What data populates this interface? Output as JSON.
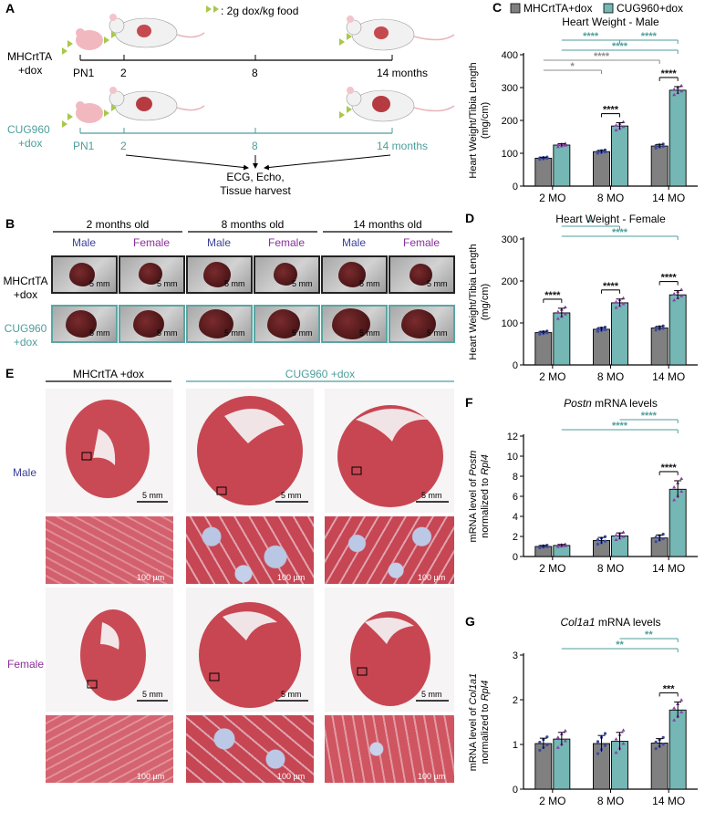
{
  "panels": {
    "A": {
      "letter": "A",
      "food_label": ": 2g dox/kg food",
      "row1_name_line1": "MHCrtTA",
      "row1_name_line2": "+dox",
      "row2_name_line1": "CUG960",
      "row2_name_line2": "+dox",
      "timepoints": [
        "PN1",
        "2",
        "8",
        "14 months"
      ],
      "outcome_line1": "ECG, Echo,",
      "outcome_line2": "Tissue harvest"
    },
    "B": {
      "letter": "B",
      "ages": [
        "2 months old",
        "8 months old",
        "14 months old"
      ],
      "sexes": [
        "Male",
        "Female"
      ],
      "row1_line1": "MHCrtTA",
      "row1_line2": "+dox",
      "row2_line1": "CUG960",
      "row2_line2": "+dox",
      "scale": "5 mm"
    },
    "E": {
      "letter": "E",
      "group1": "MHCrtTA +dox",
      "group2": "CUG960 +dox",
      "male": "Male",
      "female": "Female",
      "scale_large": "5 mm",
      "scale_small": "100 µm"
    }
  },
  "legend": {
    "series": [
      {
        "name": "MHCrtTA+dox",
        "color": "#7a7a7a"
      },
      {
        "name": "CUG960+dox",
        "color": "#6fb3b1"
      }
    ]
  },
  "colors": {
    "ctrl_bar": "#808080",
    "cug_bar": "#74b7b4",
    "teal_sig": "#4e9e9b",
    "gray_sig": "#8c8c8c",
    "male_text": "#3a3f9a",
    "female_text": "#8a2f9a",
    "black_sig": "#111111"
  },
  "chart_data": [
    {
      "id": "C",
      "letter": "C",
      "type": "bar",
      "title": "Heart Weight - Male",
      "ylabel_line1": "Heart Weight/Tibia Length",
      "ylabel_line2": "(mg/cm)",
      "categories": [
        "2 MO",
        "8 MO",
        "14 MO"
      ],
      "ylim": [
        0,
        400
      ],
      "yticks": [
        "0",
        "100",
        "200",
        "300",
        "400"
      ],
      "series": [
        {
          "name": "MHCrtTA+dox",
          "values": [
            85,
            105,
            122
          ],
          "errors": [
            3,
            4,
            5
          ]
        },
        {
          "name": "CUG960+dox",
          "values": [
            125,
            183,
            292
          ],
          "errors": [
            4,
            10,
            11
          ]
        }
      ],
      "significance": [
        {
          "from": [
            0,
            1
          ],
          "to": [
            1,
            1
          ],
          "level": 0,
          "label": "****",
          "color": "teal"
        },
        {
          "from": [
            1,
            1
          ],
          "to": [
            2,
            1
          ],
          "level": 0,
          "label": "****",
          "color": "teal"
        },
        {
          "from": [
            0,
            1
          ],
          "to": [
            2,
            1
          ],
          "level": 1,
          "label": "****",
          "color": "teal"
        },
        {
          "from": [
            0,
            0
          ],
          "to": [
            2,
            0
          ],
          "level": 2,
          "label": "****",
          "color": "gray"
        },
        {
          "from": [
            0,
            0
          ],
          "to": [
            1,
            0
          ],
          "level": 3,
          "label": "*",
          "color": "gray"
        },
        {
          "from": [
            1,
            0
          ],
          "to": [
            1,
            1
          ],
          "level": 4,
          "label": "****",
          "color": "black"
        },
        {
          "from": [
            2,
            0
          ],
          "to": [
            2,
            1
          ],
          "level": 4,
          "label": "****",
          "color": "black"
        }
      ]
    },
    {
      "id": "D",
      "letter": "D",
      "type": "bar",
      "title": "Heart Weight - Female",
      "ylabel_line1": "Heart Weight/Tibia Length",
      "ylabel_line2": "(mg/cm)",
      "categories": [
        "2 MO",
        "8 MO",
        "14 MO"
      ],
      "ylim": [
        0,
        300
      ],
      "yticks": [
        "0",
        "100",
        "200",
        "300"
      ],
      "series": [
        {
          "name": "MHCrtTA+dox",
          "values": [
            77,
            85,
            88
          ],
          "errors": [
            3,
            4,
            4
          ]
        },
        {
          "name": "CUG960+dox",
          "values": [
            124,
            148,
            167
          ],
          "errors": [
            11,
            9,
            10
          ]
        }
      ],
      "significance": [
        {
          "from": [
            0,
            1
          ],
          "to": [
            1,
            1
          ],
          "level": 0,
          "label": "*",
          "color": "teal"
        },
        {
          "from": [
            0,
            1
          ],
          "to": [
            2,
            1
          ],
          "level": 1,
          "label": "****",
          "color": "teal"
        },
        {
          "from": [
            0,
            0
          ],
          "to": [
            0,
            1
          ],
          "level": 4,
          "label": "****",
          "color": "black"
        },
        {
          "from": [
            1,
            0
          ],
          "to": [
            1,
            1
          ],
          "level": 4,
          "label": "****",
          "color": "black"
        },
        {
          "from": [
            2,
            0
          ],
          "to": [
            2,
            1
          ],
          "level": 4,
          "label": "****",
          "color": "black"
        }
      ]
    },
    {
      "id": "F",
      "letter": "F",
      "type": "bar",
      "title_gene": "Postn",
      "title_rest": " mRNA levels",
      "ylabel_line1_a": "mRNA level of ",
      "ylabel_line1_gene": "Postn",
      "ylabel_line2_a": "normalized to ",
      "ylabel_line2_gene": "Rpl4",
      "categories": [
        "2 MO",
        "8 MO",
        "14 MO"
      ],
      "ylim": [
        0,
        12
      ],
      "yticks": [
        "0",
        "2",
        "4",
        "6",
        "8",
        "10",
        "12"
      ],
      "series": [
        {
          "name": "MHCrtTA+dox",
          "values": [
            1.0,
            1.6,
            1.85
          ],
          "errors": [
            0.1,
            0.3,
            0.3
          ]
        },
        {
          "name": "CUG960+dox",
          "values": [
            1.1,
            2.05,
            6.7
          ],
          "errors": [
            0.1,
            0.3,
            0.85
          ]
        }
      ],
      "significance": [
        {
          "from": [
            1,
            1
          ],
          "to": [
            2,
            1
          ],
          "level": 0,
          "label": "****",
          "color": "teal"
        },
        {
          "from": [
            0,
            1
          ],
          "to": [
            2,
            1
          ],
          "level": 1,
          "label": "****",
          "color": "teal"
        },
        {
          "from": [
            2,
            0
          ],
          "to": [
            2,
            1
          ],
          "level": 4,
          "label": "****",
          "color": "black"
        }
      ]
    },
    {
      "id": "G",
      "letter": "G",
      "type": "bar",
      "title_gene": "Col1a1",
      "title_rest": " mRNA levels",
      "ylabel_line1_a": "mRNA level of ",
      "ylabel_line1_gene": "Col1a1",
      "ylabel_line2_a": "normalized to ",
      "ylabel_line2_gene": "Rpl4",
      "categories": [
        "2 MO",
        "8 MO",
        "14 MO"
      ],
      "ylim": [
        0,
        3
      ],
      "yticks": [
        "0",
        "1",
        "2",
        "3"
      ],
      "series": [
        {
          "name": "MHCrtTA+dox",
          "values": [
            1.02,
            1.02,
            1.03
          ],
          "errors": [
            0.12,
            0.18,
            0.1
          ]
        },
        {
          "name": "CUG960+dox",
          "values": [
            1.12,
            1.07,
            1.77
          ],
          "errors": [
            0.15,
            0.2,
            0.18
          ]
        }
      ],
      "significance": [
        {
          "from": [
            1,
            1
          ],
          "to": [
            2,
            1
          ],
          "level": 0,
          "label": "**",
          "color": "teal"
        },
        {
          "from": [
            0,
            1
          ],
          "to": [
            2,
            1
          ],
          "level": 1,
          "label": "**",
          "color": "teal"
        },
        {
          "from": [
            2,
            0
          ],
          "to": [
            2,
            1
          ],
          "level": 4,
          "label": "***",
          "color": "black"
        }
      ]
    }
  ]
}
